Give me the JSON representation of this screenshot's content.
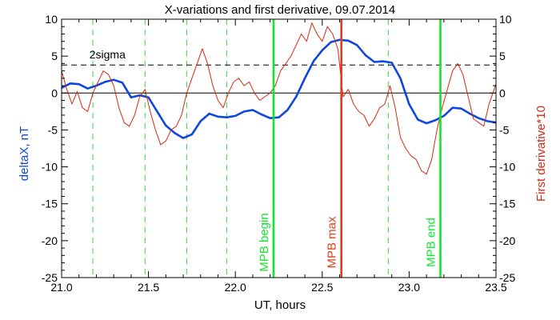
{
  "chart_data": {
    "type": "line",
    "title": "X-variations and first derivative, 09.07.2014",
    "xlabel": "UT, hours",
    "ylabel_left": "deltaX, nT",
    "ylabel_right": "First derivative*10",
    "xlim": [
      21.0,
      23.5
    ],
    "ylim": [
      -25,
      10
    ],
    "x_ticks": [
      "21.0",
      "21.5",
      "22.0",
      "22.5",
      "23.0",
      "23.5"
    ],
    "y_ticks": [
      "10",
      "5",
      "0",
      "-5",
      "-10",
      "-15",
      "-20",
      "-25"
    ],
    "colors": {
      "deltaX": "#1046e0",
      "derivative": "#d42a12",
      "mpb_boundary": "#13e62c",
      "mpb_max": "#e03d1f",
      "dashed_green": "#3ad43a"
    },
    "sigma_level": 3.8,
    "sigma_label": "2sigma",
    "dashed_green_x": [
      21.18,
      21.48,
      21.72,
      21.95,
      22.88
    ],
    "vertical_lines": [
      {
        "x": 22.22,
        "label": "MPB begin",
        "role": "begin"
      },
      {
        "x": 22.61,
        "label": "MPB max",
        "role": "max"
      },
      {
        "x": 23.18,
        "label": "MPB end",
        "role": "end"
      }
    ],
    "series": [
      {
        "key": "deltaX",
        "x": [
          21.0,
          21.05,
          21.1,
          21.15,
          21.2,
          21.25,
          21.3,
          21.35,
          21.4,
          21.45,
          21.5,
          21.55,
          21.6,
          21.65,
          21.7,
          21.75,
          21.8,
          21.85,
          21.9,
          21.95,
          22.0,
          22.05,
          22.1,
          22.15,
          22.2,
          22.25,
          22.3,
          22.35,
          22.4,
          22.45,
          22.5,
          22.55,
          22.6,
          22.65,
          22.7,
          22.75,
          22.8,
          22.85,
          22.9,
          22.95,
          23.0,
          23.05,
          23.1,
          23.15,
          23.2,
          23.25,
          23.3,
          23.35,
          23.4,
          23.45,
          23.5
        ],
        "values": [
          0.7,
          1.3,
          1.2,
          0.6,
          1.0,
          1.5,
          1.8,
          1.4,
          -0.6,
          -0.3,
          -0.6,
          -2.5,
          -4.4,
          -5.4,
          -6.1,
          -5.6,
          -3.8,
          -2.8,
          -3.2,
          -3.3,
          -3.1,
          -2.5,
          -2.3,
          -2.9,
          -3.4,
          -3.3,
          -2.3,
          -0.5,
          2.0,
          4.3,
          5.8,
          6.9,
          7.2,
          7.1,
          6.5,
          5.1,
          4.2,
          4.3,
          4.1,
          2.0,
          -1.5,
          -3.6,
          -4.1,
          -3.7,
          -3.1,
          -2.0,
          -2.1,
          -2.8,
          -3.4,
          -3.8,
          -4.0
        ]
      },
      {
        "key": "derivative",
        "x": [
          21.0,
          21.03,
          21.06,
          21.09,
          21.12,
          21.15,
          21.18,
          21.21,
          21.24,
          21.27,
          21.3,
          21.33,
          21.36,
          21.39,
          21.42,
          21.45,
          21.48,
          21.51,
          21.54,
          21.57,
          21.6,
          21.63,
          21.66,
          21.69,
          21.72,
          21.75,
          21.78,
          21.81,
          21.84,
          21.87,
          21.9,
          21.93,
          21.96,
          21.99,
          22.02,
          22.05,
          22.08,
          22.11,
          22.14,
          22.17,
          22.2,
          22.23,
          22.26,
          22.29,
          22.32,
          22.35,
          22.38,
          22.41,
          22.44,
          22.47,
          22.5,
          22.53,
          22.56,
          22.59,
          22.62,
          22.65,
          22.68,
          22.71,
          22.74,
          22.77,
          22.8,
          22.83,
          22.86,
          22.89,
          22.92,
          22.95,
          22.98,
          23.01,
          23.04,
          23.07,
          23.1,
          23.13,
          23.16,
          23.19,
          23.22,
          23.25,
          23.28,
          23.31,
          23.34,
          23.37,
          23.4,
          23.43,
          23.46,
          23.5
        ],
        "values": [
          3.0,
          0.5,
          -1.5,
          0.2,
          -2.0,
          -2.5,
          0.0,
          1.5,
          3.0,
          2.5,
          1.0,
          -2.0,
          -4.0,
          -4.5,
          -3.0,
          -0.5,
          0.5,
          -2.5,
          -5.0,
          -7.0,
          -6.5,
          -5.0,
          -4.5,
          -3.0,
          0.0,
          2.0,
          4.0,
          6.0,
          4.0,
          1.0,
          -1.0,
          -2.0,
          0.0,
          1.5,
          2.0,
          1.0,
          1.5,
          0.0,
          -1.0,
          -0.5,
          0.0,
          1.0,
          3.0,
          4.0,
          5.0,
          6.5,
          8.0,
          7.0,
          9.5,
          8.0,
          7.0,
          9.0,
          8.0,
          6.0,
          -0.5,
          0.5,
          -1.5,
          -2.5,
          -3.0,
          -4.5,
          -3.5,
          -2.0,
          -1.5,
          1.0,
          -2.0,
          -6.0,
          -7.5,
          -8.5,
          -9.0,
          -10.5,
          -11.0,
          -9.0,
          -5.0,
          -2.0,
          0.5,
          3.0,
          4.0,
          2.5,
          -0.5,
          -3.5,
          -4.0,
          -4.5,
          -1.5,
          1.2
        ]
      }
    ]
  }
}
